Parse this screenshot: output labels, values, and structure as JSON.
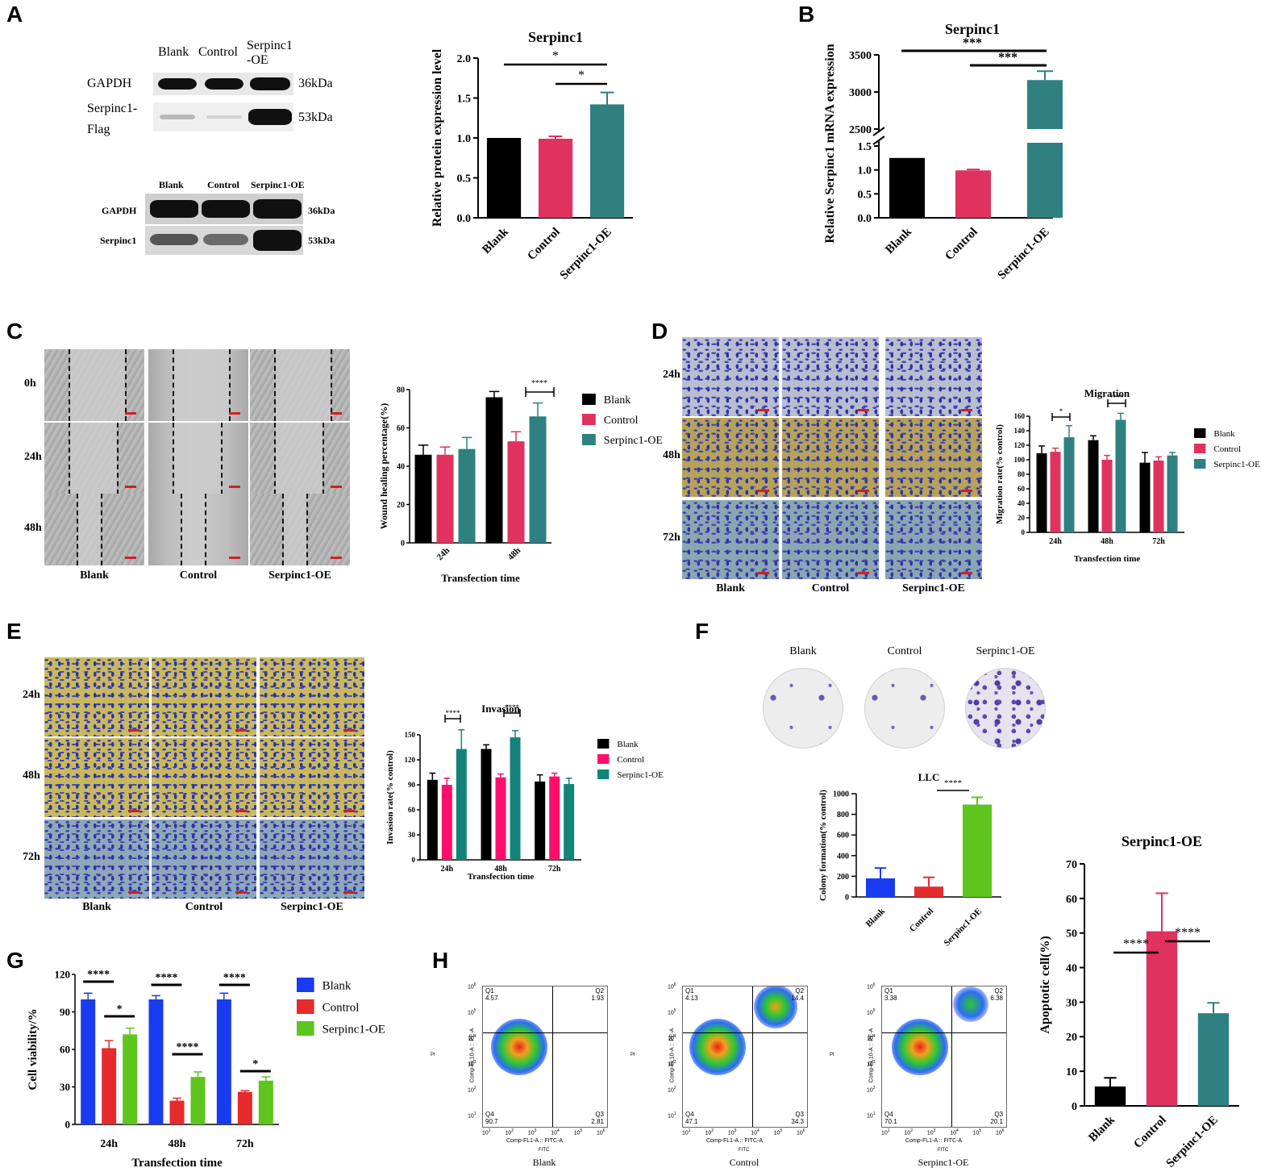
{
  "panel_labels": [
    "A",
    "B",
    "C",
    "D",
    "E",
    "F",
    "G",
    "H"
  ],
  "colors": {
    "blank": "#000000",
    "control": "#e0325f",
    "oe": "#2f8080",
    "blank_F": "#1a3cf0",
    "control_F": "#e52b2b",
    "oe_F": "#5ec41e",
    "control_E": "#ff0f6b",
    "oe_E": "#14847a"
  },
  "blot1": {
    "header": [
      "Blank",
      "Control",
      "Serpinc1\n-OE"
    ],
    "rows": [
      {
        "label": "GAPDH",
        "kda": "36kDa"
      },
      {
        "label": "Serpinc1-\nFlag",
        "kda": "53kDa"
      }
    ]
  },
  "blot2": {
    "header": [
      "Blank",
      "Control",
      "Serpinc1-OE"
    ],
    "rows": [
      {
        "label": "GAPDH",
        "kda": "36kDa"
      },
      {
        "label": "Serpinc1",
        "kda": "53kDa"
      }
    ]
  },
  "wound": {
    "rows": [
      "0h",
      "24h",
      "48h"
    ],
    "cols": [
      "Blank",
      "Control",
      "Serpinc1-OE"
    ]
  },
  "migration_images": {
    "rows": [
      "24h",
      "48h",
      "72h"
    ],
    "cols": [
      "Blank",
      "Control",
      "Serpinc1-OE"
    ]
  },
  "invasion_images": {
    "rows": [
      "24h",
      "48h",
      "72h"
    ],
    "cols": [
      "Blank",
      "Control",
      "Serpinc1-OE"
    ]
  },
  "colony": {
    "labels": [
      "Blank",
      "Control",
      "Serpinc1-OE"
    ]
  },
  "flow": {
    "plots": [
      {
        "name": "Blank",
        "q1": "4.57",
        "q2": "1.93",
        "q3": "2.81",
        "q4": "90.7"
      },
      {
        "name": "Control",
        "q1": "4.13",
        "q2": "14.4",
        "q3": "34.3",
        "q4": "47.1"
      },
      {
        "name": "Serpinc1-OE",
        "q1": "3.38",
        "q2": "6.38",
        "q3": "20.1",
        "q4": "70.1"
      }
    ],
    "quadrants": [
      "Q1",
      "Q2",
      "Q3",
      "Q4"
    ],
    "ylabel": "Comp-FL10-A :: PE-A",
    "ysub": "PI",
    "xlabel": "Comp-FL1-A :: FITC-A",
    "xsub": "FITC",
    "ticks": [
      "10",
      "10",
      "10",
      "10",
      "10",
      "10"
    ],
    "tick_exp": [
      "1",
      "2",
      "3",
      "4",
      "5",
      "6"
    ]
  },
  "chart_data": [
    {
      "id": "A",
      "type": "bar",
      "title": "Serpinc1",
      "ylabel": "Relative protein  expression level",
      "categories": [
        "Blank",
        "Control",
        "Serpinc1-OE"
      ],
      "values": [
        1.0,
        0.99,
        1.42
      ],
      "errors": [
        0,
        0.03,
        0.15
      ],
      "ylim": [
        0,
        2.0
      ],
      "yticks": [
        "0.0",
        "0.5",
        "1.0",
        "1.5",
        "2.0"
      ],
      "sig": [
        {
          "from": 0,
          "to": 2,
          "label": "*"
        },
        {
          "from": 1,
          "to": 2,
          "label": "*"
        }
      ]
    },
    {
      "id": "B",
      "type": "bar",
      "title": "Serpinc1",
      "ylabel": "Relative Serpinc1 mRNA expression",
      "categories": [
        "Blank",
        "Control",
        "Serpinc1-OE"
      ],
      "values": [
        1.25,
        0.99,
        3160
      ],
      "errors": [
        0,
        0.02,
        120
      ],
      "ylim_low": [
        0,
        1.5
      ],
      "ylim_high": [
        2500,
        3500
      ],
      "yticks_low": [
        "0.0",
        "0.5",
        "1.0",
        "1.5"
      ],
      "yticks_high": [
        "2500",
        "3000",
        "3500"
      ],
      "sig": [
        {
          "from": 0,
          "to": 2,
          "label": "***"
        },
        {
          "from": 1,
          "to": 2,
          "label": "***"
        }
      ]
    },
    {
      "id": "C",
      "type": "bar",
      "ylabel": "Wound healing percentage(%)",
      "xlabel": "Transfection time",
      "categories": [
        "24h",
        "48h"
      ],
      "series": [
        {
          "name": "Blank",
          "values": [
            46,
            76
          ],
          "errors": [
            5,
            3
          ]
        },
        {
          "name": "Control",
          "values": [
            46,
            53
          ],
          "errors": [
            4,
            5
          ]
        },
        {
          "name": "Serpinc1-OE",
          "values": [
            49,
            66
          ],
          "errors": [
            6,
            7
          ]
        }
      ],
      "ylim": [
        0,
        80
      ],
      "yticks": [
        "0",
        "20",
        "40",
        "60",
        "80"
      ],
      "sig": [
        {
          "label": "****"
        }
      ]
    },
    {
      "id": "D",
      "type": "bar",
      "title": "Migration",
      "ylabel": "Migration rate(% control)",
      "xlabel": "Transfection time",
      "categories": [
        "24h",
        "48h",
        "72h"
      ],
      "series": [
        {
          "name": "Blank",
          "values": [
            109,
            127,
            96
          ],
          "errors": [
            10,
            6,
            14
          ]
        },
        {
          "name": "Control",
          "values": [
            111,
            100,
            99
          ],
          "errors": [
            5,
            6,
            5
          ]
        },
        {
          "name": "Serpinc1-OE",
          "values": [
            131,
            155,
            106
          ],
          "errors": [
            16,
            9,
            4
          ]
        }
      ],
      "ylim": [
        0,
        160
      ],
      "yticks": [
        "0",
        "20",
        "40",
        "60",
        "80",
        "100",
        "120",
        "140",
        "160"
      ],
      "sig": [
        {
          "label": "*"
        },
        {
          "label": "****"
        }
      ]
    },
    {
      "id": "E",
      "type": "bar",
      "title": "Invasion",
      "ylabel": "Invasion rate(% control)",
      "xlabel": "Transfection time",
      "categories": [
        "24h",
        "48h",
        "72h"
      ],
      "series": [
        {
          "name": "Blank",
          "values": [
            96,
            133,
            94
          ],
          "errors": [
            8,
            5,
            8
          ]
        },
        {
          "name": "Control",
          "values": [
            90,
            99,
            100
          ],
          "errors": [
            8,
            4,
            4
          ]
        },
        {
          "name": "Serpinc1-OE",
          "values": [
            133,
            147,
            91
          ],
          "errors": [
            23,
            8,
            7
          ]
        }
      ],
      "ylim": [
        0,
        150
      ],
      "yticks": [
        "0",
        "30",
        "60",
        "90",
        "120",
        "150"
      ],
      "sig": [
        {
          "label": "****"
        },
        {
          "label": "****"
        }
      ]
    },
    {
      "id": "F",
      "type": "bar",
      "title": "LLC",
      "ylabel": "Colony formation(% control)",
      "categories": [
        "Blank",
        "Control",
        "Serpinc1-OE"
      ],
      "values": [
        180,
        100,
        895
      ],
      "errors": [
        100,
        90,
        70
      ],
      "ylim": [
        0,
        1000
      ],
      "yticks": [
        "0",
        "200",
        "400",
        "600",
        "800",
        "1000"
      ],
      "sig": [
        {
          "from": 1,
          "to": 2,
          "label": "****"
        }
      ]
    },
    {
      "id": "G",
      "type": "bar",
      "ylabel": "Cell viability/%",
      "xlabel": "Transfection time",
      "categories": [
        "24h",
        "48h",
        "72h"
      ],
      "series": [
        {
          "name": "Blank",
          "values": [
            100,
            100,
            100
          ],
          "errors": [
            5,
            3,
            5
          ]
        },
        {
          "name": "Control",
          "values": [
            61,
            19,
            26
          ],
          "errors": [
            6,
            2,
            1
          ]
        },
        {
          "name": "Serpinc1-OE",
          "values": [
            72,
            38,
            35
          ],
          "errors": [
            5,
            4,
            3
          ]
        }
      ],
      "ylim": [
        0,
        120
      ],
      "yticks": [
        "0",
        "30",
        "60",
        "90",
        "120"
      ],
      "sig": [
        {
          "label": "****"
        },
        {
          "label": "*"
        },
        {
          "label": "****"
        },
        {
          "label": "****"
        },
        {
          "label": "****"
        },
        {
          "label": "*"
        }
      ]
    },
    {
      "id": "H",
      "type": "bar",
      "title": "Serpinc1-OE",
      "ylabel": "Apoptotic cell(%)",
      "categories": [
        "Blank",
        "Control",
        "Serpinc1-OE"
      ],
      "values": [
        5.6,
        50.5,
        26.8
      ],
      "errors": [
        2.5,
        11,
        3
      ],
      "ylim": [
        0,
        70
      ],
      "yticks": [
        "0",
        "10",
        "20",
        "30",
        "40",
        "50",
        "60",
        "70"
      ],
      "sig": [
        {
          "from": 0,
          "to": 1,
          "label": "****"
        },
        {
          "from": 1,
          "to": 2,
          "label": "****"
        }
      ]
    }
  ]
}
